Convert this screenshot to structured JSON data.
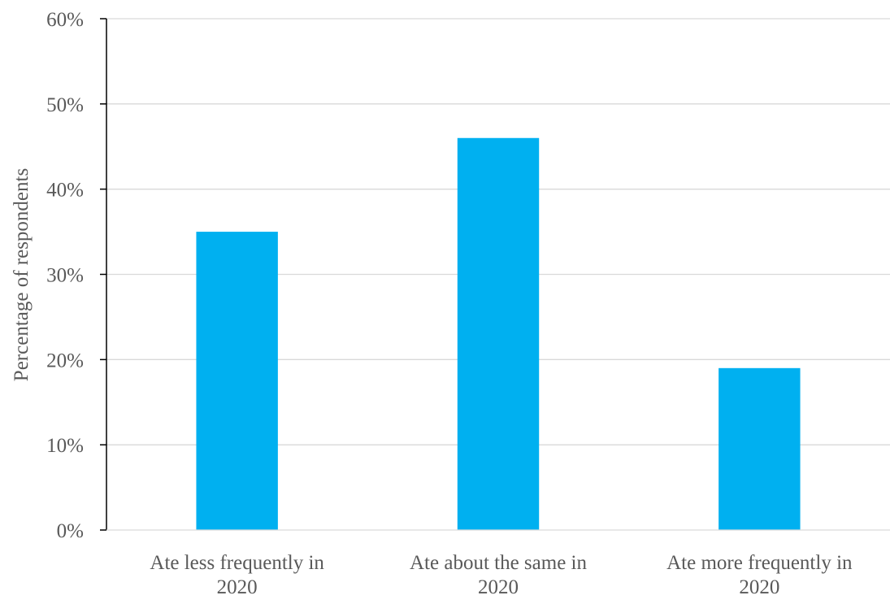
{
  "chart_data": {
    "type": "bar",
    "title": "",
    "xlabel": "",
    "ylabel": "Percentage of respondents",
    "ylim": [
      0,
      60
    ],
    "y_tick_step": 10,
    "y_tick_labels": [
      "0%",
      "10%",
      "20%",
      "30%",
      "40%",
      "50%",
      "60%"
    ],
    "categories": [
      [
        "Ate less frequently in",
        "2020"
      ],
      [
        "Ate about the same in",
        "2020"
      ],
      [
        "Ate more frequently in",
        "2020"
      ]
    ],
    "values": [
      35,
      46,
      19
    ],
    "bar_color": "#00b0f0",
    "grid": true,
    "legend": "none"
  }
}
